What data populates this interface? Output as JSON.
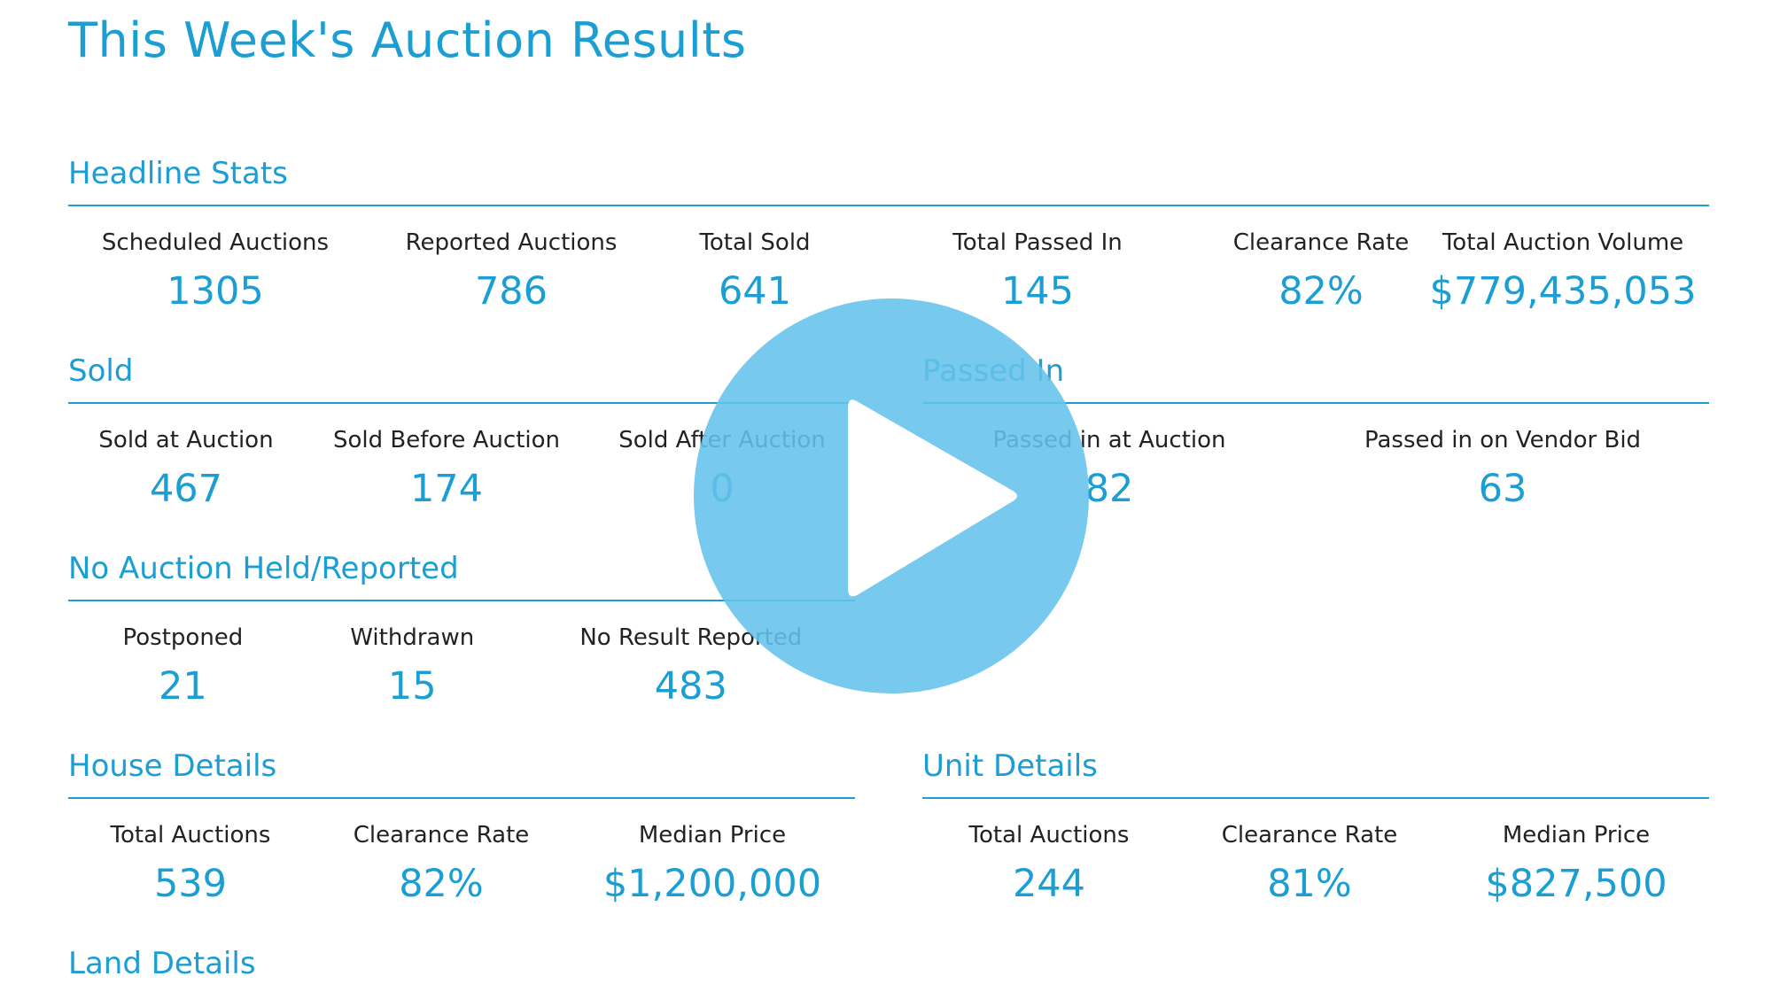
{
  "page": {
    "title": "This Week's Auction Results"
  },
  "headline": {
    "title": "Headline Stats",
    "stats": [
      {
        "label": "Scheduled Auctions",
        "value": "1305"
      },
      {
        "label": "Reported Auctions",
        "value": "786"
      },
      {
        "label": "Total Sold",
        "value": "641"
      },
      {
        "label": "Total Passed In",
        "value": "145"
      },
      {
        "label": "Clearance Rate",
        "value": "82%"
      },
      {
        "label": "Total Auction Volume",
        "value": "$779,435,053"
      }
    ]
  },
  "sold": {
    "title": "Sold",
    "stats": [
      {
        "label": "Sold at Auction",
        "value": "467"
      },
      {
        "label": "Sold Before Auction",
        "value": "174"
      },
      {
        "label": "Sold After Auction",
        "value": "0"
      }
    ]
  },
  "passed_in": {
    "title": "Passed In",
    "stats": [
      {
        "label": "Passed in at Auction",
        "value": "82"
      },
      {
        "label": "Passed in on Vendor Bid",
        "value": "63"
      }
    ]
  },
  "no_auction": {
    "title": "No Auction Held/Reported",
    "stats": [
      {
        "label": "Postponed",
        "value": "21"
      },
      {
        "label": "Withdrawn",
        "value": "15"
      },
      {
        "label": "No Result Reported",
        "value": "483"
      }
    ]
  },
  "house": {
    "title": "House Details",
    "stats": [
      {
        "label": "Total Auctions",
        "value": "539"
      },
      {
        "label": "Clearance Rate",
        "value": "82%"
      },
      {
        "label": "Median Price",
        "value": "$1,200,000"
      }
    ]
  },
  "unit": {
    "title": "Unit Details",
    "stats": [
      {
        "label": "Total Auctions",
        "value": "244"
      },
      {
        "label": "Clearance Rate",
        "value": "81%"
      },
      {
        "label": "Median Price",
        "value": "$827,500"
      }
    ]
  },
  "land": {
    "title": "Land Details"
  },
  "overlay": {
    "icon": "play-icon",
    "color": "#64c3ea"
  }
}
